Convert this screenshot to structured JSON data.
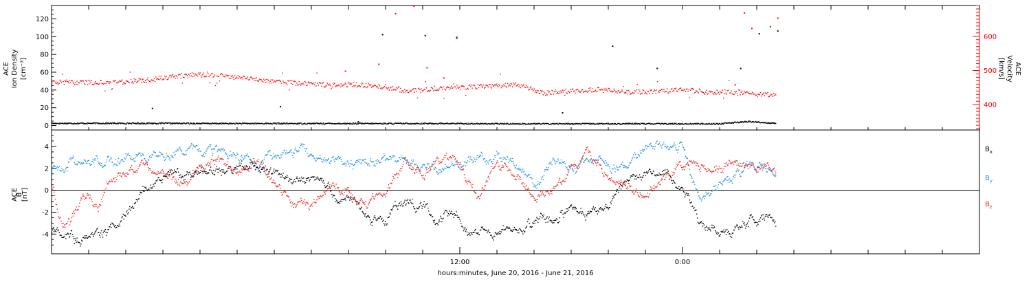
{
  "chart_data": {
    "type": "scatter",
    "xlabel": "hours:minutes, June 20, 2016 - June 21, 2016",
    "x_axis": {
      "range_hours": [
        -10,
        40
      ],
      "tick_labels": [
        {
          "hour": 12,
          "text": "12:00"
        },
        {
          "hour": 24,
          "text": "0:00"
        }
      ],
      "minor_tick_step_hours": 2,
      "data_end_hour": 29
    },
    "panels": [
      {
        "name": "plasma",
        "ylabel_left": [
          "ACE",
          "Ion Density",
          "[cm⁻³]"
        ],
        "ylabel_right": [
          "ACE",
          "Velocity",
          "[km/s]"
        ],
        "ylim_left": [
          -5,
          135
        ],
        "yticks_left": [
          "0",
          "20",
          "40",
          "60",
          "80",
          "100",
          "120"
        ],
        "ylim_right": [
          326,
          690
        ],
        "yticks_right": [
          "400",
          "500",
          "600"
        ],
        "right_axis_color": "#ff0000",
        "series": [
          {
            "name": "Density",
            "color": "#000000",
            "axis": "left",
            "x": [
              -10,
              -7,
              -4,
              -1,
              2,
              5,
              7,
              9,
              11,
              14,
              17,
              20,
              23,
              26,
              27.5,
              29
            ],
            "y": [
              3,
              3,
              3,
              2.8,
              2.8,
              2.8,
              2.7,
              2.8,
              2.8,
              2.5,
              2.5,
              2.5,
              2.5,
              2.5,
              5,
              3
            ],
            "outliers": [
              {
                "x": 7.8,
                "y": 103
              },
              {
                "x": 10.1,
                "y": 102
              },
              {
                "x": 11.8,
                "y": 99
              },
              {
                "x": 20.2,
                "y": 90
              },
              {
                "x": 22.6,
                "y": 65
              },
              {
                "x": 27.1,
                "y": 65
              },
              {
                "x": 28.1,
                "y": 104
              },
              {
                "x": 29.1,
                "y": 107
              },
              {
                "x": 2.3,
                "y": 22
              },
              {
                "x": -4.6,
                "y": 20
              },
              {
                "x": 6.5,
                "y": 5
              },
              {
                "x": 17.5,
                "y": 15
              }
            ]
          },
          {
            "name": "Velocity",
            "color": "#ff0000",
            "axis": "right",
            "x": [
              -10,
              -7.5,
              -5,
              -3,
              -1.5,
              0.5,
              2,
              3.5,
              5,
              6.5,
              8,
              9.2,
              10.5,
              12,
              13.5,
              15,
              16.5,
              18,
              19.5,
              21,
              22.5,
              24,
              25.5,
              27,
              28,
              29
            ],
            "y": [
              467,
              466,
              472,
              486,
              490,
              478,
              470,
              463,
              458,
              460,
              453,
              440,
              448,
              453,
              455,
              460,
              436,
              442,
              445,
              437,
              440,
              445,
              437,
              438,
              430,
              432
            ],
            "outliers": [
              {
                "x": 7.6,
                "y": 520
              },
              {
                "x": 8.5,
                "y": 668
              },
              {
                "x": 9.5,
                "y": 690
              },
              {
                "x": 10.2,
                "y": 510
              },
              {
                "x": 11.1,
                "y": 480
              },
              {
                "x": 11.8,
                "y": 600
              },
              {
                "x": 27.3,
                "y": 670
              },
              {
                "x": 27.7,
                "y": 625
              },
              {
                "x": 28.7,
                "y": 630
              },
              {
                "x": 29.1,
                "y": 655
              },
              {
                "x": 26.8,
                "y": 460
              },
              {
                "x": 5.8,
                "y": 500
              }
            ]
          }
        ]
      },
      {
        "name": "magnetic",
        "ylabel_left": [
          "ACE",
          "B",
          "[nT]"
        ],
        "ylim": [
          -5.8,
          5.5
        ],
        "yticks": [
          "-4",
          "-2",
          "0",
          "2",
          "4"
        ],
        "zero_line": true,
        "series": [
          {
            "name": "B_x",
            "label_main": "B",
            "label_sub": "x",
            "color": "#000000",
            "x": [
              -10,
              -9,
              -8.5,
              -7.5,
              -6,
              -5,
              -4,
              -3,
              -2,
              -1,
              0,
              1,
              2,
              3,
              4,
              5,
              5.5,
              6,
              7,
              8,
              8.5,
              9,
              10,
              11,
              12,
              12.5,
              13,
              14,
              15,
              16,
              17,
              18,
              19,
              20,
              21,
              22,
              23,
              24,
              25,
              26,
              27,
              28,
              29
            ],
            "y": [
              -3.8,
              -4,
              -4.5,
              -3.9,
              -2.5,
              0,
              1.5,
              1.5,
              1.9,
              1.7,
              2.1,
              2.2,
              1.5,
              0.8,
              0.8,
              0,
              -1,
              -0.5,
              -2.5,
              -3,
              -1.5,
              -1,
              -1.5,
              -2.5,
              -2,
              -4,
              -4.2,
              -3.5,
              -2.9,
              -3,
              -2.7,
              -1.5,
              -2,
              -1,
              0.9,
              1.3,
              1.5,
              0.3,
              -3,
              -3.7,
              -3.5,
              -2.2,
              -2.9
            ]
          },
          {
            "name": "B_y",
            "label_main": "B",
            "label_sub": "y",
            "color": "#1e8fe0",
            "x": [
              -10,
              -9,
              -8,
              -7,
              -6,
              -5,
              -4,
              -3,
              -2,
              -1,
              0,
              1,
              2,
              3,
              4,
              5,
              6,
              7,
              8,
              9,
              10,
              11,
              12,
              13,
              14,
              15,
              16,
              17,
              18,
              19,
              20,
              21,
              22,
              23,
              24,
              25,
              26,
              27,
              28,
              29
            ],
            "y": [
              1.8,
              2.2,
              2.5,
              2.6,
              2.8,
              3.1,
              3.3,
              3.6,
              3.5,
              3.3,
              3.4,
              2.5,
              3.1,
              3.8,
              3.5,
              2.6,
              2.7,
              2.7,
              2.8,
              2.5,
              2,
              2.2,
              2.5,
              2.7,
              3,
              2.6,
              0.6,
              2.8,
              2.5,
              2.2,
              2.2,
              2.4,
              4.2,
              4,
              3.8,
              -0.8,
              0.4,
              1.5,
              2.2,
              1.6
            ]
          },
          {
            "name": "B_z",
            "label_main": "B",
            "label_sub": "z",
            "color": "#e8231e",
            "x": [
              -10,
              -9.5,
              -9,
              -8.5,
              -8,
              -7.5,
              -7,
              -6,
              -5,
              -4,
              -3,
              -2,
              -1,
              0,
              1,
              2,
              3,
              4,
              5,
              6,
              7,
              8,
              9,
              10,
              11,
              12,
              13,
              14,
              15,
              16,
              17,
              18,
              19,
              20,
              21,
              22,
              23,
              24,
              25,
              26,
              27,
              28,
              29
            ],
            "y": [
              0.2,
              -2.8,
              -3.5,
              -1,
              -0.5,
              -1.8,
              0.5,
              1.5,
              2.2,
              1.5,
              0.5,
              1.8,
              2.5,
              1.5,
              2.8,
              0.5,
              -1.2,
              -1.5,
              0.5,
              -0.5,
              -1.2,
              -0.3,
              2.8,
              1.5,
              2.8,
              2.5,
              -1,
              2.8,
              1,
              -0.8,
              0,
              2,
              3,
              1.2,
              0.5,
              -0.2,
              1,
              2.2,
              2,
              2.2,
              2.5,
              2.2,
              1.6
            ]
          }
        ]
      }
    ]
  }
}
